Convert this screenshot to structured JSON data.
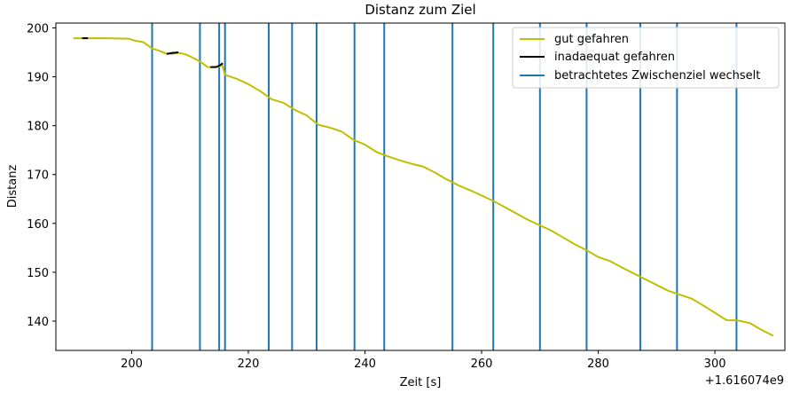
{
  "chart_data": {
    "type": "line",
    "title": "Distanz zum Ziel",
    "xlabel": "Zeit [s]",
    "ylabel": "Distanz",
    "x_offset_label": "+1.616074e9",
    "xlim": [
      187,
      312
    ],
    "ylim": [
      134,
      201
    ],
    "x_ticks": [
      200,
      220,
      240,
      260,
      280,
      300
    ],
    "y_ticks": [
      140,
      150,
      160,
      170,
      180,
      190,
      200
    ],
    "grid": false,
    "legend_position": "top-right",
    "colors": {
      "good": "#bfbf00",
      "bad": "#000000",
      "switch": "#1f77b4"
    },
    "series": [
      {
        "name": "gut gefahren",
        "style": "line",
        "points": [
          [
            190.0,
            197.9
          ],
          [
            193.0,
            197.9
          ],
          [
            196.0,
            197.9
          ],
          [
            199.5,
            197.8
          ],
          [
            200.5,
            197.4
          ],
          [
            202.0,
            197.1
          ],
          [
            203.5,
            195.8
          ],
          [
            205.0,
            195.2
          ],
          [
            206.0,
            194.7
          ],
          [
            207.0,
            194.7
          ],
          [
            208.0,
            194.9
          ],
          [
            209.0,
            194.7
          ],
          [
            210.0,
            194.2
          ],
          [
            211.0,
            193.6
          ],
          [
            212.0,
            192.9
          ],
          [
            213.0,
            192.0
          ],
          [
            214.0,
            192.0
          ],
          [
            215.0,
            192.1
          ],
          [
            215.5,
            192.6
          ],
          [
            216.0,
            190.4
          ],
          [
            218.0,
            189.6
          ],
          [
            220.0,
            188.5
          ],
          [
            222.0,
            187.1
          ],
          [
            224.0,
            185.4
          ],
          [
            226.0,
            184.7
          ],
          [
            228.0,
            183.2
          ],
          [
            230.0,
            182.1
          ],
          [
            232.0,
            180.2
          ],
          [
            234.0,
            179.6
          ],
          [
            236.0,
            178.8
          ],
          [
            238.0,
            177.1
          ],
          [
            240.0,
            176.1
          ],
          [
            242.0,
            174.6
          ],
          [
            244.0,
            173.7
          ],
          [
            246.0,
            172.9
          ],
          [
            248.0,
            172.2
          ],
          [
            250.0,
            171.6
          ],
          [
            252.0,
            170.4
          ],
          [
            254.0,
            169.0
          ],
          [
            256.0,
            167.8
          ],
          [
            258.0,
            166.8
          ],
          [
            260.0,
            165.7
          ],
          [
            262.0,
            164.6
          ],
          [
            264.0,
            163.3
          ],
          [
            266.0,
            162.0
          ],
          [
            268.0,
            160.7
          ],
          [
            270.0,
            159.6
          ],
          [
            272.0,
            158.5
          ],
          [
            274.0,
            157.1
          ],
          [
            276.0,
            155.7
          ],
          [
            278.0,
            154.5
          ],
          [
            280.0,
            153.1
          ],
          [
            282.0,
            152.3
          ],
          [
            284.0,
            151.0
          ],
          [
            286.0,
            149.8
          ],
          [
            288.0,
            148.6
          ],
          [
            290.0,
            147.4
          ],
          [
            292.0,
            146.2
          ],
          [
            294.0,
            145.4
          ],
          [
            296.0,
            144.6
          ],
          [
            298.0,
            143.2
          ],
          [
            300.0,
            141.7
          ],
          [
            302.0,
            140.2
          ],
          [
            303.0,
            140.2
          ],
          [
            304.0,
            140.1
          ],
          [
            306.0,
            139.6
          ],
          [
            308.0,
            138.2
          ],
          [
            310.0,
            137.0
          ]
        ]
      },
      {
        "name": "inadaequat gefahren",
        "style": "segments",
        "segments": [
          [
            [
              191.5,
              197.9
            ],
            [
              192.5,
              197.9
            ]
          ],
          [
            [
              206.0,
              194.7
            ],
            [
              207.0,
              194.9
            ],
            [
              208.0,
              195.0
            ]
          ],
          [
            [
              213.5,
              192.0
            ],
            [
              214.5,
              192.0
            ],
            [
              215.2,
              192.4
            ],
            [
              215.6,
              192.8
            ]
          ]
        ]
      },
      {
        "name": "betrachtetes Zwischenziel wechselt",
        "style": "vlines",
        "x": [
          203.5,
          211.7,
          215.0,
          216.0,
          223.5,
          227.5,
          231.7,
          238.2,
          243.3,
          255.0,
          262.0,
          270.0,
          278.0,
          287.2,
          293.5,
          303.7
        ]
      }
    ]
  }
}
